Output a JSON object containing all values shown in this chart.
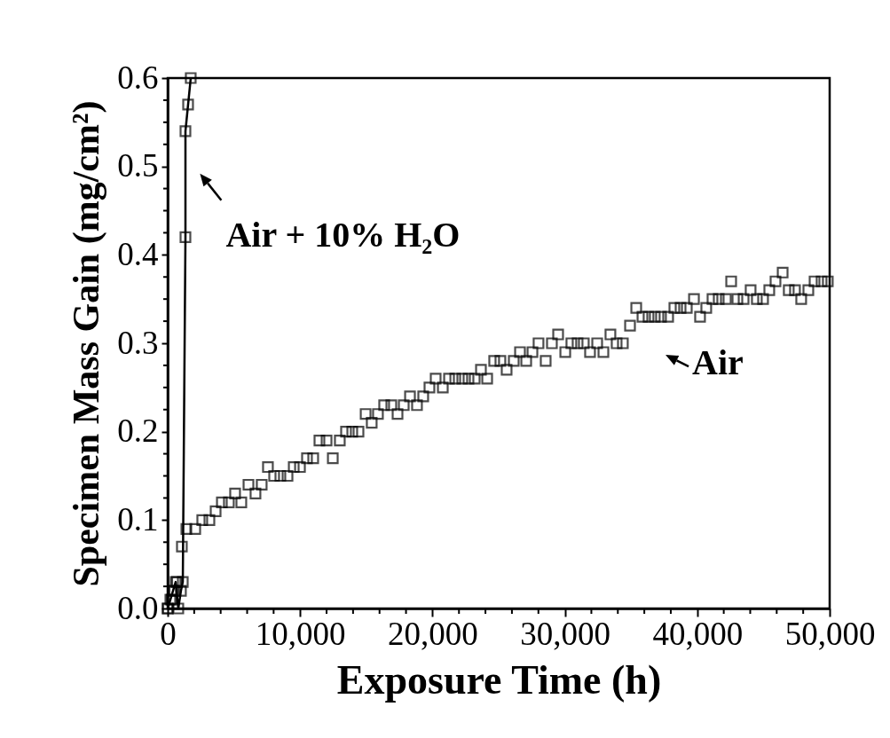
{
  "chart_data": {
    "type": "scatter",
    "xlabel": "Exposure Time (h)",
    "ylabel": "Specimen Mass Gain (mg/cm²)",
    "xlim": [
      0,
      50000
    ],
    "ylim": [
      0,
      0.6
    ],
    "xticks": [
      0,
      {
        "value": 2000,
        "label": null
      },
      {
        "value": 4000,
        "label": null
      },
      {
        "value": 6000,
        "label": null
      },
      {
        "value": 8000,
        "label": null
      },
      {
        "value": 10000,
        "label": "10,000"
      },
      {
        "value": 12000,
        "label": null
      },
      {
        "value": 14000,
        "label": null
      },
      {
        "value": 16000,
        "label": null
      },
      {
        "value": 18000,
        "label": null
      },
      {
        "value": 20000,
        "label": "20,000"
      },
      {
        "value": 22000,
        "label": null
      },
      {
        "value": 24000,
        "label": null
      },
      {
        "value": 26000,
        "label": null
      },
      {
        "value": 28000,
        "label": null
      },
      {
        "value": 30000,
        "label": "30,000"
      },
      {
        "value": 32000,
        "label": null
      },
      {
        "value": 34000,
        "label": null
      },
      {
        "value": 36000,
        "label": null
      },
      {
        "value": 38000,
        "label": null
      },
      {
        "value": 40000,
        "label": "40,000"
      },
      {
        "value": 42000,
        "label": null
      },
      {
        "value": 44000,
        "label": null
      },
      {
        "value": 46000,
        "label": null
      },
      {
        "value": 48000,
        "label": null
      },
      {
        "value": 50000,
        "label": "50,000"
      }
    ],
    "yticks": [
      {
        "value": 0,
        "label": "0.0"
      },
      {
        "value": 0.025,
        "label": null
      },
      {
        "value": 0.05,
        "label": null
      },
      {
        "value": 0.075,
        "label": null
      },
      0.1,
      {
        "value": 0.125,
        "label": null
      },
      {
        "value": 0.15,
        "label": null
      },
      {
        "value": 0.175,
        "label": null
      },
      0.2,
      {
        "value": 0.225,
        "label": null
      },
      {
        "value": 0.25,
        "label": null
      },
      {
        "value": 0.275,
        "label": null
      },
      0.3,
      {
        "value": 0.325,
        "label": null
      },
      {
        "value": 0.35,
        "label": null
      },
      {
        "value": 0.375,
        "label": null
      },
      0.4,
      {
        "value": 0.425,
        "label": null
      },
      {
        "value": 0.45,
        "label": null
      },
      {
        "value": 0.475,
        "label": null
      },
      0.5,
      {
        "value": 0.525,
        "label": null
      },
      {
        "value": 0.55,
        "label": null
      },
      {
        "value": 0.575,
        "label": null
      },
      0.6
    ],
    "marker": "square",
    "grid": false,
    "series": [
      {
        "color": "#000000",
        "x": [
          0,
          300,
          500,
          700,
          1070,
          1410,
          2080,
          2610,
          3150,
          3620,
          4090,
          4620,
          5090,
          5560,
          6100,
          6630,
          7100,
          7570,
          8040,
          8510,
          9050,
          9520,
          9990,
          10520,
          10990,
          11460,
          12000,
          12470,
          13000,
          13470,
          13940,
          14410,
          14950,
          15410,
          15880,
          16350,
          16890,
          17360,
          17830,
          18300,
          18830,
          19300,
          19770,
          20240,
          20780,
          21250,
          21720,
          22250,
          22720,
          23190,
          23660,
          24130,
          24660,
          25130,
          25600,
          26140,
          26610,
          27080,
          27550,
          28010,
          28550,
          29020,
          29490,
          30030,
          30490,
          30960,
          31430,
          31900,
          32440,
          32910,
          33440,
          33910,
          34380,
          34920,
          35390,
          35860,
          36320,
          36790,
          37260,
          37800,
          38270,
          38740,
          39210,
          39750,
          40210,
          40680,
          41150,
          41620,
          42160,
          42560,
          43030,
          43500,
          44030,
          44500,
          44970,
          45440,
          45910,
          46450,
          46910,
          47380,
          47850,
          48390,
          48860,
          49390,
          49860
        ],
        "values": [
          0,
          0.01,
          0.02,
          0.03,
          0.07,
          0.09,
          0.09,
          0.1,
          0.1,
          0.11,
          0.12,
          0.12,
          0.13,
          0.12,
          0.14,
          0.13,
          0.14,
          0.16,
          0.15,
          0.15,
          0.15,
          0.16,
          0.16,
          0.17,
          0.17,
          0.19,
          0.19,
          0.17,
          0.19,
          0.2,
          0.2,
          0.2,
          0.22,
          0.21,
          0.22,
          0.23,
          0.23,
          0.22,
          0.23,
          0.24,
          0.23,
          0.24,
          0.25,
          0.26,
          0.25,
          0.26,
          0.26,
          0.26,
          0.26,
          0.26,
          0.27,
          0.26,
          0.28,
          0.28,
          0.27,
          0.28,
          0.29,
          0.28,
          0.29,
          0.3,
          0.28,
          0.3,
          0.31,
          0.29,
          0.3,
          0.3,
          0.3,
          0.29,
          0.3,
          0.29,
          0.31,
          0.3,
          0.3,
          0.32,
          0.34,
          0.33,
          0.33,
          0.33,
          0.33,
          0.33,
          0.34,
          0.34,
          0.34,
          0.35,
          0.33,
          0.34,
          0.35,
          0.35,
          0.35,
          0.37,
          0.35,
          0.35,
          0.36,
          0.35,
          0.35,
          0.36,
          0.37,
          0.38,
          0.36,
          0.36,
          0.35,
          0.36,
          0.37,
          0.37,
          0.37
        ]
      },
      {
        "type": "line",
        "color": "#000000",
        "x": [
          0,
          200,
          400,
          600,
          800,
          1000,
          1140,
          1340,
          1340,
          1540,
          1740
        ],
        "values": [
          0,
          0.01,
          0.02,
          0.03,
          0,
          0.02,
          0.03,
          0.42,
          0.54,
          0.57,
          0.6
        ]
      }
    ],
    "annotations": [
      {
        "text": "Air + 10% H₂O",
        "x": 1500,
        "y": 0.5
      },
      {
        "text": "Air",
        "x": 37000,
        "y": 0.33
      }
    ]
  }
}
